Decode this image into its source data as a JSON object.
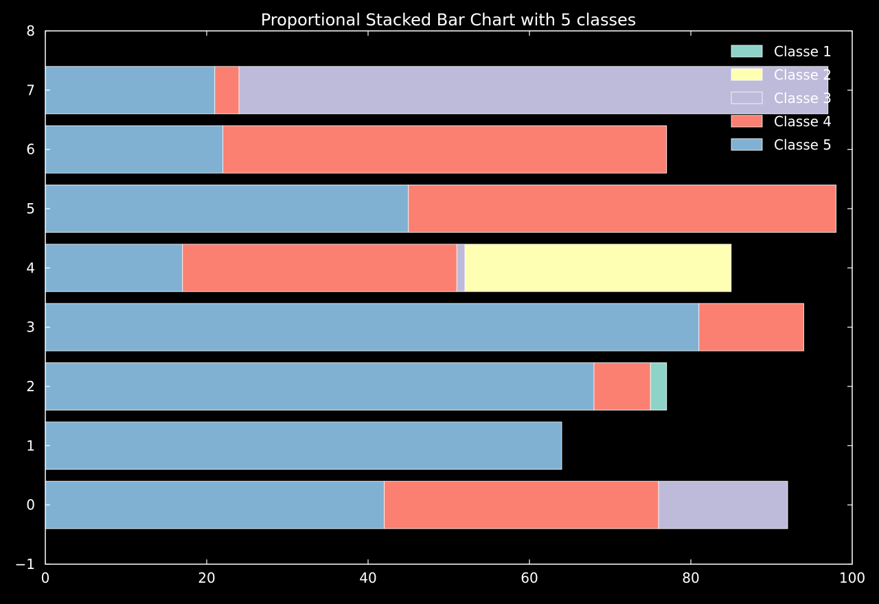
{
  "chart_data": {
    "type": "bar",
    "orientation": "horizontal",
    "stacked": true,
    "title": "Proportional Stacked Bar Chart with 5 classes",
    "xlabel": "",
    "ylabel": "",
    "xlim": [
      0,
      100
    ],
    "ylim": [
      -1,
      8
    ],
    "xticks": [
      "0",
      "20",
      "40",
      "60",
      "80",
      "100"
    ],
    "yticks": [
      "−1",
      "0",
      "1",
      "2",
      "3",
      "4",
      "5",
      "6",
      "7",
      "8"
    ],
    "grid": false,
    "legend_position": "top-right",
    "categories": [
      0,
      1,
      2,
      3,
      4,
      5,
      6,
      7
    ],
    "series": [
      {
        "name": "Classe 5",
        "color": "#80b1d3",
        "values": [
          42,
          64,
          68,
          81,
          17,
          45,
          22,
          21
        ]
      },
      {
        "name": "Classe 4",
        "color": "#fb8072",
        "values": [
          34,
          0,
          7,
          13,
          34,
          53,
          55,
          3
        ]
      },
      {
        "name": "Classe 3",
        "color": "#bebada",
        "values": [
          16,
          0,
          0,
          0,
          1,
          0,
          0,
          73
        ]
      },
      {
        "name": "Classe 2",
        "color": "#ffffb3",
        "values": [
          0,
          0,
          0,
          0,
          33,
          0,
          0,
          0
        ]
      },
      {
        "name": "Classe 1",
        "color": "#8dd3c7",
        "values": [
          0,
          0,
          2,
          0,
          0,
          0,
          0,
          0
        ]
      }
    ],
    "legend_order": [
      "Classe 1",
      "Classe 2",
      "Classe 3",
      "Classe 4",
      "Classe 5"
    ]
  }
}
